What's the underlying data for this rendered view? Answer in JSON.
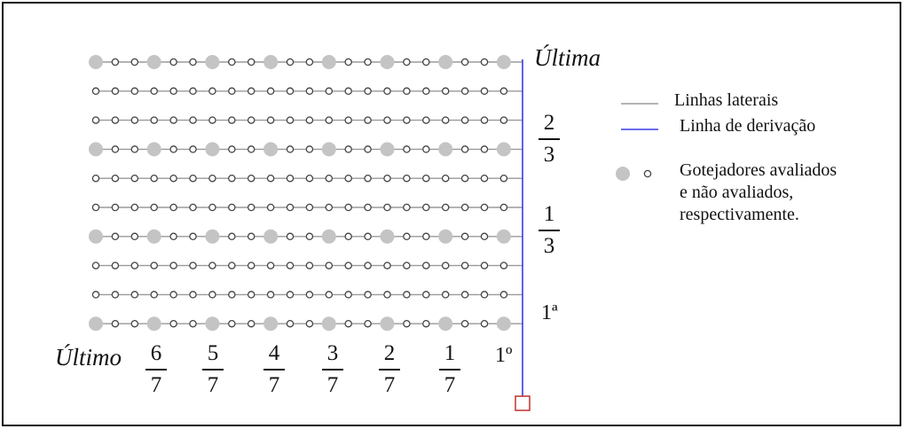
{
  "row_labels": {
    "last": "Última",
    "two_thirds": {
      "num": "2",
      "den": "3"
    },
    "one_third": {
      "num": "1",
      "den": "3"
    },
    "first": "1ª"
  },
  "col_labels": {
    "last": "Último",
    "fractions": [
      {
        "num": "6",
        "den": "7"
      },
      {
        "num": "5",
        "den": "7"
      },
      {
        "num": "4",
        "den": "7"
      },
      {
        "num": "3",
        "den": "7"
      },
      {
        "num": "2",
        "den": "7"
      },
      {
        "num": "1",
        "den": "7"
      }
    ],
    "first": "1º"
  },
  "legend": {
    "lateral": "Linhas laterais",
    "derivation": "Linha de derivação",
    "emitters_line1": "Gotejadores avaliados",
    "emitters_line2": "e não avaliados,",
    "emitters_line3": "respectivamente."
  },
  "grid": {
    "rows": 10,
    "columns": 22,
    "evaluated_rows": [
      0,
      3,
      6,
      9
    ],
    "evaluated_columns": [
      0,
      3,
      6,
      9,
      12,
      15,
      18,
      21
    ]
  },
  "colors": {
    "lateral_line": "#9a9a9a",
    "derivation_line": "#3a3ae8",
    "evaluated_emitter": "#c4c4c4",
    "unevaluated_emitter": "#444444",
    "valve": "#c0302a"
  }
}
